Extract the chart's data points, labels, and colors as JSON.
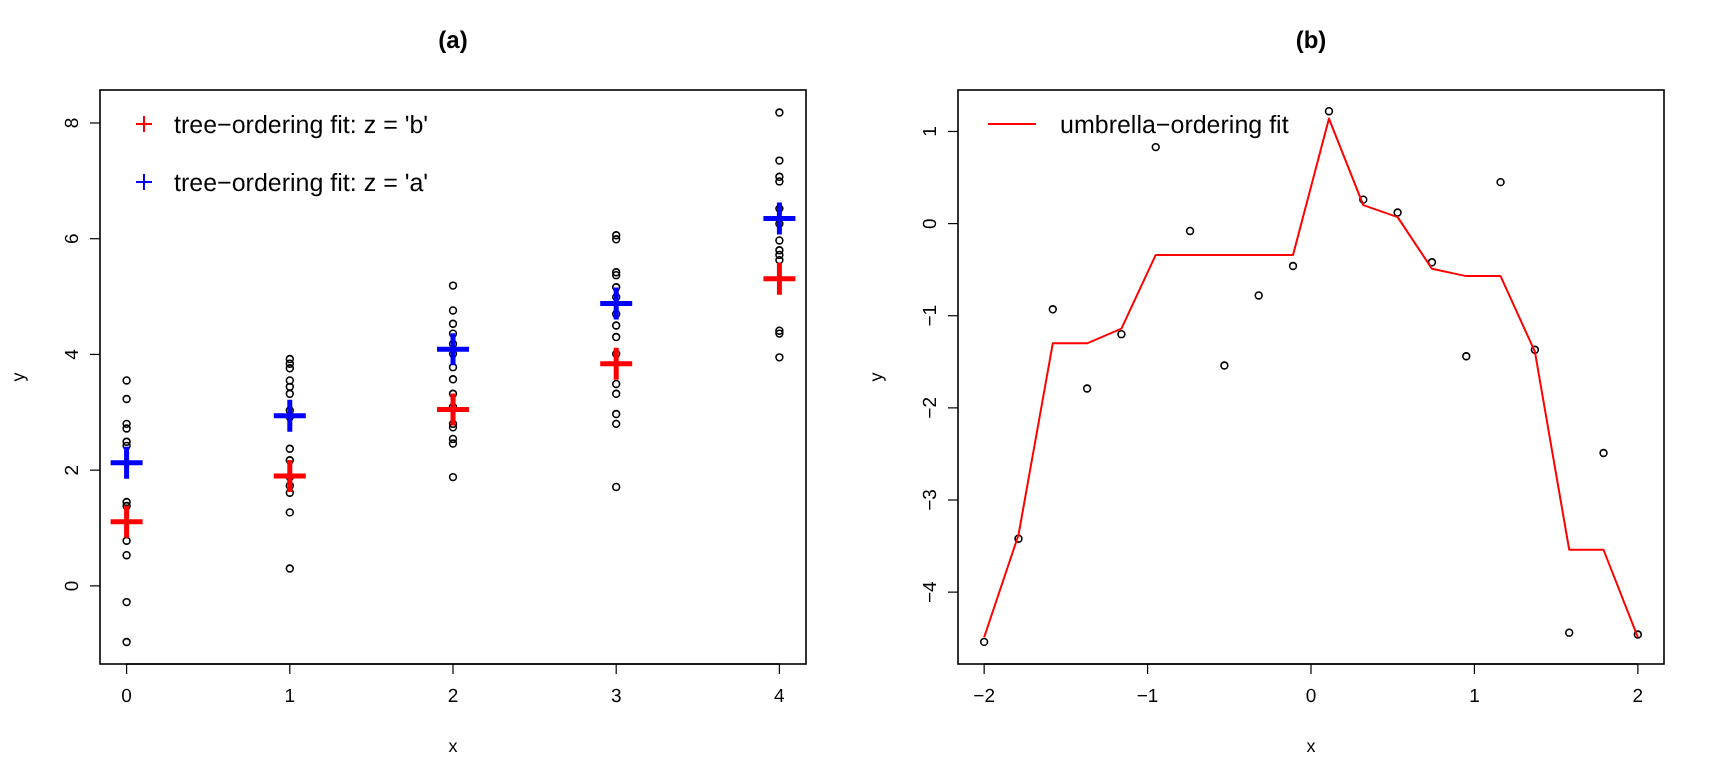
{
  "chart_data": [
    {
      "type": "scatter",
      "title": "(a)",
      "xlabel": "x",
      "ylabel": "y",
      "xlim": [
        -0.163,
        4.163
      ],
      "xticks": [
        0,
        1,
        2,
        3,
        4
      ],
      "ylim": [
        -1.35,
        8.57
      ],
      "yticks": [
        0,
        2,
        4,
        6,
        8
      ],
      "grid": false,
      "legend": "top left",
      "series": [
        {
          "marker": "circle",
          "color": "#000000",
          "x": [
            0,
            0,
            0,
            0,
            0,
            0,
            0,
            0,
            0,
            0,
            0,
            0,
            1,
            1,
            1,
            1,
            1,
            1,
            1,
            1,
            1,
            1,
            1,
            1,
            1,
            1,
            1,
            2,
            2,
            2,
            2,
            2,
            2,
            2,
            2,
            2,
            2,
            2,
            2,
            2,
            2,
            2,
            3,
            3,
            3,
            3,
            3,
            3,
            3,
            3,
            3,
            3,
            3,
            3,
            3,
            3,
            3,
            4,
            4,
            4,
            4,
            4,
            4,
            4,
            4,
            4,
            4,
            4,
            4,
            4
          ],
          "values": [
            3.55,
            3.23,
            2.8,
            2.72,
            2.49,
            2.42,
            1.45,
            1.38,
            0.78,
            0.53,
            -0.28,
            -0.97,
            3.92,
            3.84,
            3.76,
            3.55,
            3.44,
            3.32,
            3.03,
            2.92,
            2.37,
            2.17,
            1.88,
            1.73,
            1.61,
            1.27,
            0.3,
            5.19,
            4.76,
            4.53,
            4.36,
            4.18,
            4.01,
            3.78,
            3.57,
            3.32,
            3.09,
            2.8,
            2.74,
            2.54,
            2.46,
            1.88,
            6.06,
            5.99,
            5.42,
            5.37,
            5.16,
            4.99,
            4.7,
            4.5,
            4.3,
            4.01,
            3.49,
            3.32,
            2.97,
            2.8,
            1.71,
            8.18,
            7.35,
            7.07,
            6.99,
            6.52,
            6.26,
            5.97,
            5.8,
            5.72,
            5.63,
            4.41,
            4.36,
            3.95
          ]
        },
        {
          "marker": "cross",
          "name": "tree−ordering fit: z = 'b'",
          "color": "#ff0000",
          "x": [
            0,
            1,
            2,
            3,
            4
          ],
          "values": [
            1.11,
            1.9,
            3.05,
            3.84,
            5.31
          ]
        },
        {
          "marker": "cross",
          "name": "tree−ordering fit: z = 'a'",
          "color": "#0000ff",
          "x": [
            0,
            1,
            2,
            3,
            4
          ],
          "values": [
            2.13,
            2.94,
            4.09,
            4.88,
            6.35
          ]
        }
      ]
    },
    {
      "type": "scatter",
      "title": "(b)",
      "xlabel": "x",
      "ylabel": "y",
      "xlim": [
        -2.16,
        2.16
      ],
      "xticks": [
        -2,
        -1,
        0,
        1,
        2
      ],
      "ylim": [
        -4.78,
        1.45
      ],
      "yticks": [
        -4,
        -3,
        -2,
        -1,
        0,
        1
      ],
      "grid": false,
      "legend": "top left",
      "series": [
        {
          "marker": "circle",
          "color": "#000000",
          "x": [
            -2,
            -1.79,
            -1.58,
            -1.37,
            -1.16,
            -0.95,
            -0.74,
            -0.53,
            -0.32,
            -0.11,
            0.11,
            0.32,
            0.53,
            0.74,
            0.95,
            1.16,
            1.37,
            1.58,
            1.79,
            2
          ],
          "values": [
            -4.54,
            -3.42,
            -0.93,
            -1.79,
            -1.2,
            0.83,
            -0.08,
            -1.54,
            -0.78,
            -0.46,
            1.22,
            0.26,
            0.12,
            -0.42,
            -1.44,
            0.45,
            -1.37,
            -4.44,
            -2.49,
            -4.46
          ]
        },
        {
          "type": "line",
          "marker": "none",
          "line_style": "solid",
          "name": "umbrella−ordering fit",
          "color": "#ff0000",
          "x": [
            -2,
            -1.79,
            -1.58,
            -1.37,
            -1.16,
            -0.95,
            -0.74,
            -0.53,
            -0.32,
            -0.11,
            0.11,
            0.32,
            0.53,
            0.74,
            0.95,
            1.16,
            1.37,
            1.58,
            1.79,
            2
          ],
          "values": [
            -4.49,
            -3.38,
            -1.3,
            -1.3,
            -1.14,
            -0.34,
            -0.34,
            -0.34,
            -0.34,
            -0.34,
            1.14,
            0.2,
            0.07,
            -0.49,
            -0.57,
            -0.57,
            -1.39,
            -3.54,
            -3.54,
            -4.49
          ]
        }
      ]
    }
  ]
}
